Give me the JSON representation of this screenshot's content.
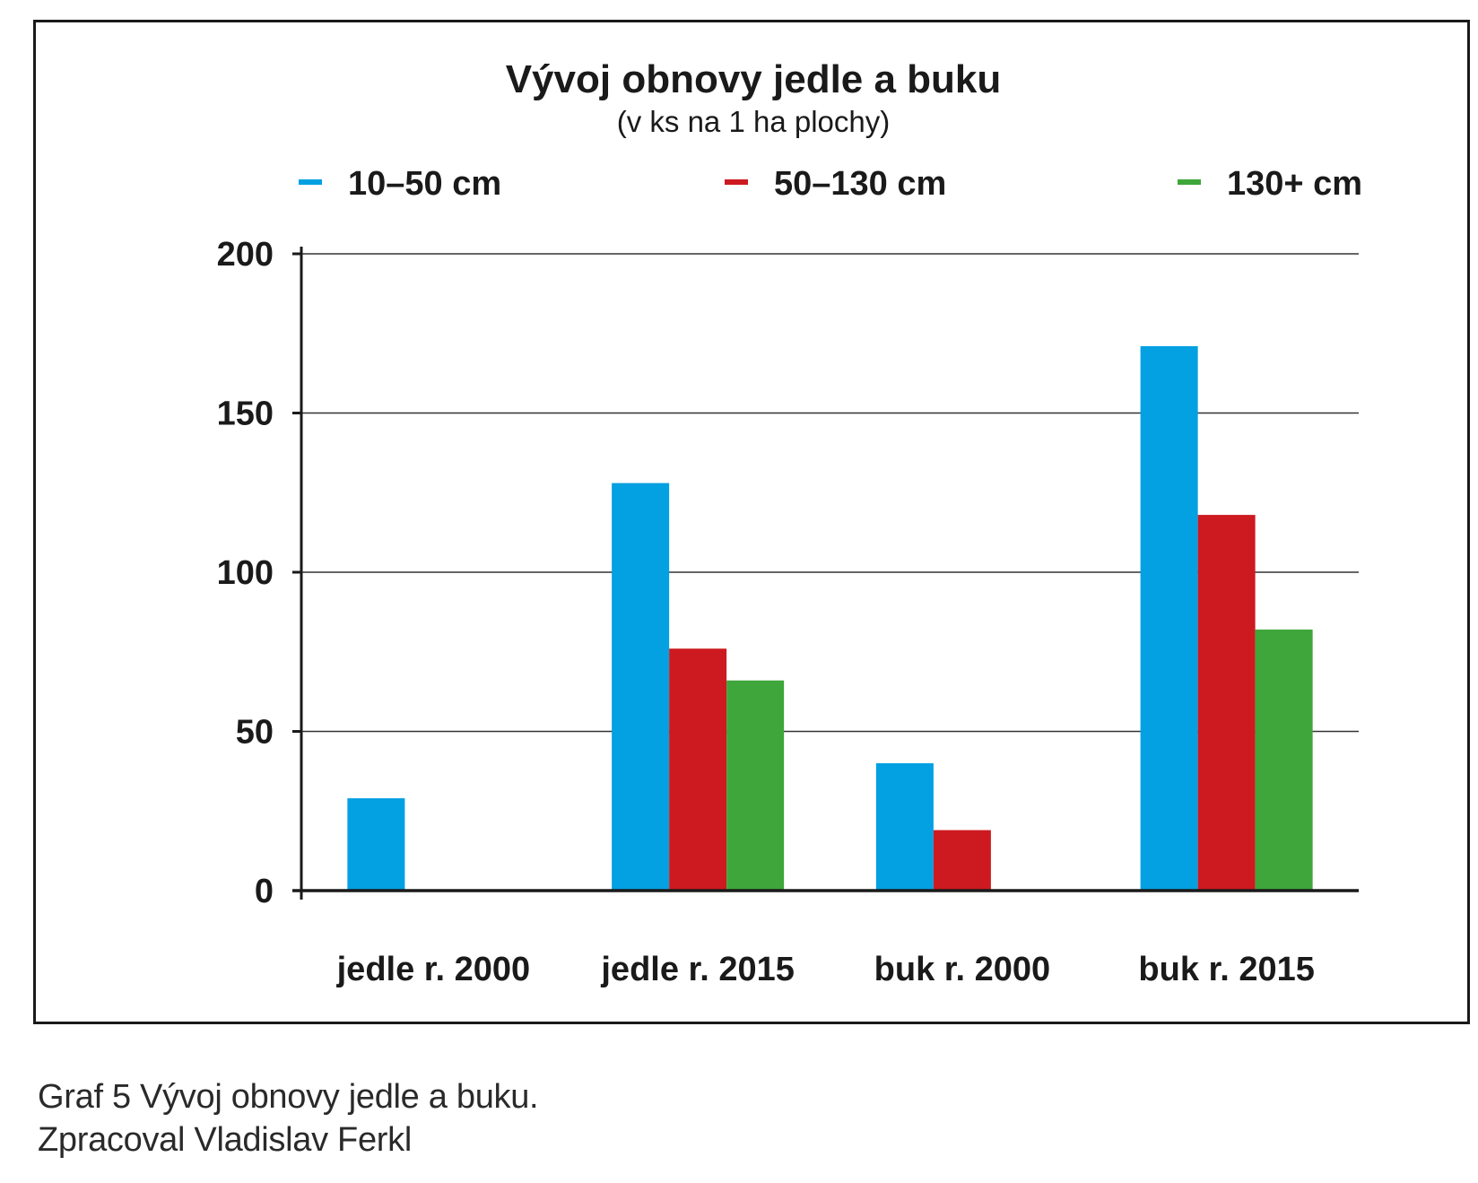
{
  "chart_data": {
    "type": "bar",
    "title": "Vývoj obnovy jedle a buku",
    "subtitle": "(v ks na 1 ha plochy)",
    "categories": [
      "jedle r. 2000",
      "jedle r. 2015",
      "buk r. 2000",
      "buk r. 2015"
    ],
    "series": [
      {
        "name": "10–50 cm",
        "color": "#03a0e2",
        "values": [
          29,
          128,
          40,
          171
        ]
      },
      {
        "name": "50–130 cm",
        "color": "#cc1a20",
        "values": [
          0,
          76,
          19,
          118
        ]
      },
      {
        "name": "130+ cm",
        "color": "#3ea63a",
        "values": [
          0,
          66,
          0,
          82
        ]
      }
    ],
    "ylim": [
      0,
      200
    ],
    "yticks": [
      0,
      50,
      100,
      150,
      200
    ],
    "grid": true,
    "legend_position": "top"
  },
  "caption": {
    "line1": "Graf 5 Vývoj obnovy jedle a buku.",
    "line2": "Zpracoval Vladislav Ferkl"
  }
}
